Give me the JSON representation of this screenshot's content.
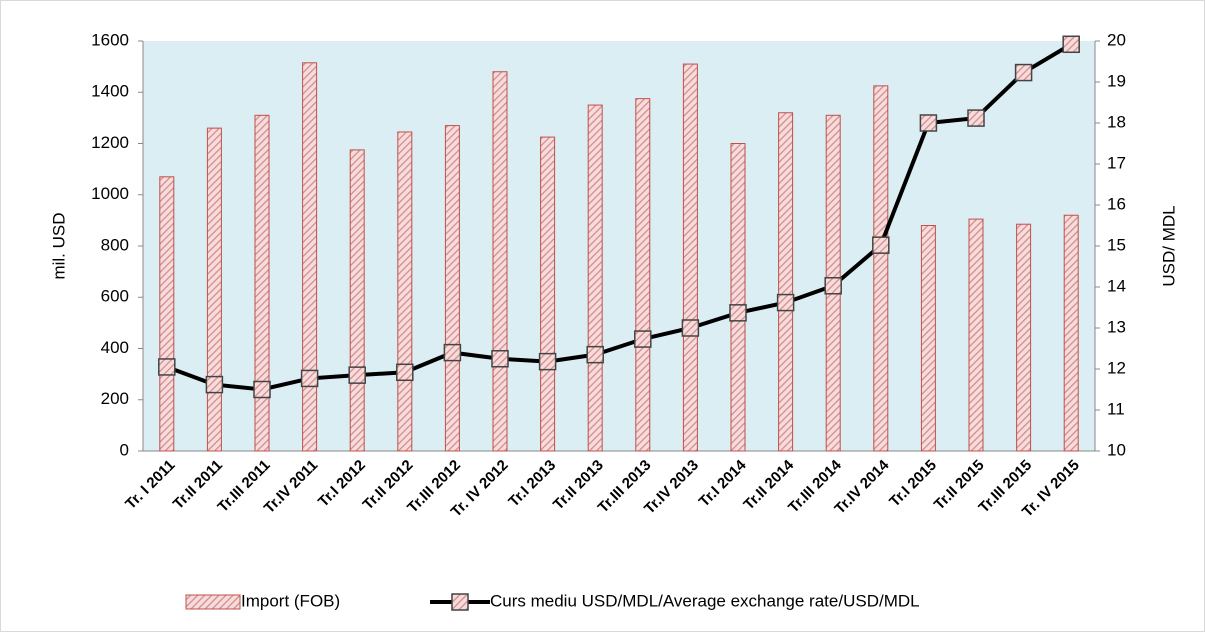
{
  "chart_data": {
    "type": "bar",
    "categories": [
      "Tr. I 2011",
      "Tr.II 2011",
      "Tr.III 2011",
      "Tr.IV 2011",
      "Tr.I 2012",
      "Tr.II 2012",
      "Tr.III 2012",
      "Tr. IV 2012",
      "Tr.I 2013",
      "Tr.II 2013",
      "Tr.III 2013",
      "Tr.IV 2013",
      "Tr.I 2014",
      "Tr.II 2014",
      "Tr.III 2014",
      "Tr.IV 2014",
      "Tr.I 2015",
      "Tr.II 2015",
      "Tr.III 2015",
      "Tr. IV 2015"
    ],
    "series": [
      {
        "name": "Import (FOB)",
        "type": "bar",
        "color": "#c0504d",
        "values": [
          1070,
          1260,
          1310,
          1515,
          1175,
          1245,
          1270,
          1480,
          1225,
          1350,
          1375,
          1510,
          1200,
          1320,
          1310,
          1425,
          880,
          905,
          885,
          920
        ]
      },
      {
        "name": "Curs mediu  USD/MDL/Average exchange rate/USD/MDL",
        "type": "line",
        "axis": "y2",
        "color": "#000000",
        "values": [
          12.05,
          11.62,
          11.5,
          11.77,
          11.85,
          11.92,
          12.4,
          12.25,
          12.18,
          12.35,
          12.73,
          13.0,
          13.37,
          13.62,
          14.03,
          15.02,
          18.0,
          18.12,
          19.23,
          19.92
        ]
      }
    ],
    "ylabel": "mil. USD",
    "y2label": "USD/ MDL",
    "ylim": [
      0,
      1600
    ],
    "yticks": [
      0,
      200,
      400,
      600,
      800,
      1000,
      1200,
      1400,
      1600
    ],
    "y2lim": [
      10,
      20
    ],
    "y2ticks": [
      10,
      11,
      12,
      13,
      14,
      15,
      16,
      17,
      18,
      19,
      20
    ],
    "legend": "bottom",
    "plot_background": "#dbeef4"
  }
}
